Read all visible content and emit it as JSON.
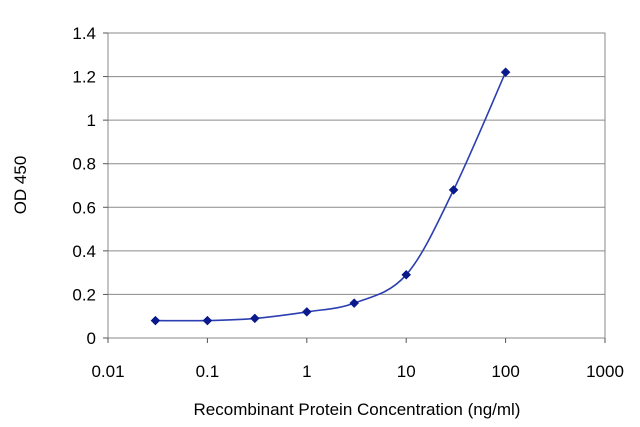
{
  "chart_data": {
    "type": "line",
    "title": "",
    "xlabel": "Recombinant Protein Concentration (ng/ml)",
    "ylabel": "OD 450",
    "x_scale": "log",
    "xlim": [
      0.01,
      1000
    ],
    "ylim": [
      0,
      1.4
    ],
    "x_ticks": [
      0.01,
      0.1,
      1,
      10,
      100,
      1000
    ],
    "x_tick_labels": [
      "0.01",
      "0.1",
      "1",
      "10",
      "100",
      "1000"
    ],
    "y_ticks": [
      0,
      0.2,
      0.4,
      0.6,
      0.8,
      1,
      1.2,
      1.4
    ],
    "y_tick_labels": [
      "0",
      "0.2",
      "0.4",
      "0.6",
      "0.8",
      "1",
      "1.2",
      "1.4"
    ],
    "grid": "horizontal",
    "series": [
      {
        "x": [
          0.03,
          0.1,
          0.3,
          1,
          3,
          10,
          30,
          100
        ],
        "y": [
          0.08,
          0.08,
          0.09,
          0.12,
          0.16,
          0.29,
          0.68,
          1.22
        ],
        "color": "#2b3fb0",
        "marker": "diamond",
        "marker_color": "#0a1a8c"
      }
    ]
  }
}
